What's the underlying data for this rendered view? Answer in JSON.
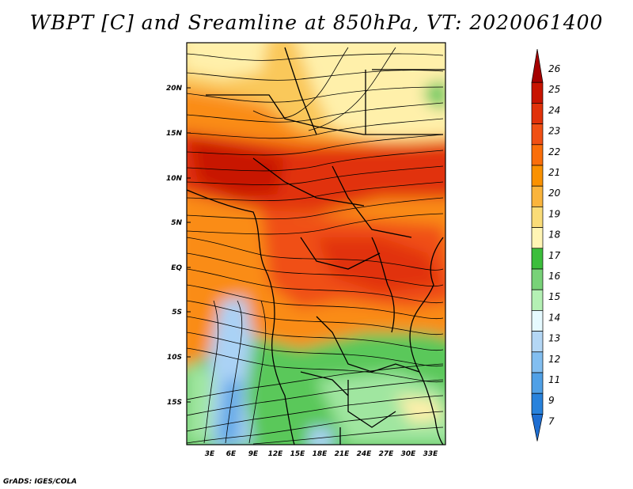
{
  "title": "WBPT [C] and Sreamline at 850hPa, VT: 2020061400",
  "footer": "GrADS: IGES/COLA",
  "lat_labels": [
    "20N",
    "15N",
    "10N",
    "5N",
    "EQ",
    "5S",
    "10S",
    "15S"
  ],
  "lon_labels": [
    "3E",
    "6E",
    "9E",
    "12E",
    "15E",
    "18E",
    "21E",
    "24E",
    "27E",
    "30E",
    "33E"
  ],
  "colorbar": {
    "levels": [
      "26",
      "25",
      "24",
      "23",
      "22",
      "21",
      "20",
      "19",
      "18",
      "17",
      "16",
      "15",
      "14",
      "13",
      "12",
      "11",
      "9",
      "7"
    ],
    "colors": [
      "#a50000",
      "#c81400",
      "#e1320a",
      "#f05014",
      "#fa6e0a",
      "#fa9100",
      "#fab43c",
      "#fadc78",
      "#fff5b4",
      "#3cbe3c",
      "#78d278",
      "#b4f0b4",
      "#e6faff",
      "#b4d7f5",
      "#82bef0",
      "#50a0e6",
      "#2882dc",
      "#1e6ed2"
    ]
  },
  "field": {
    "description_colors": {
      "very_hot": "#d7280a",
      "hot": "#f05014",
      "warm": "#fa8c14",
      "mild": "#fac85a",
      "cool": "#fff0aa",
      "green": "#5ac85a",
      "light_green": "#a0e6a0",
      "light_blue": "#aad2f5",
      "blue": "#5aa5e6"
    }
  }
}
